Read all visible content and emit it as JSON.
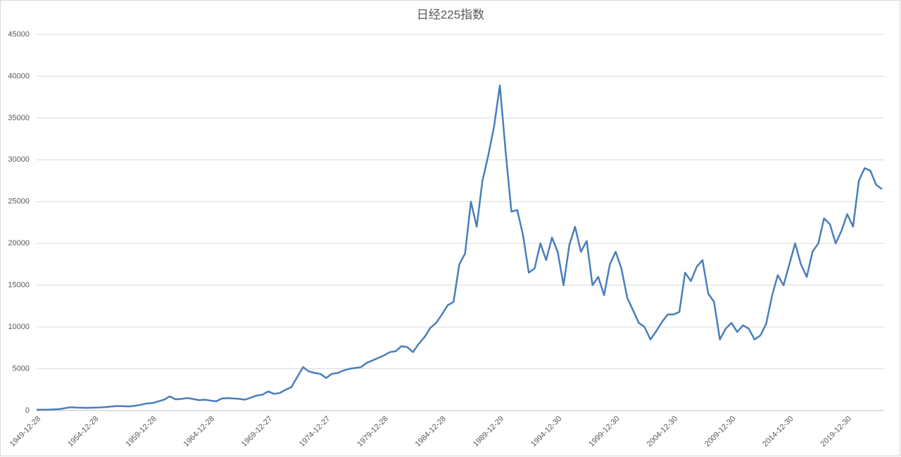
{
  "chart_data": {
    "type": "line",
    "title": "日经225指数",
    "categories": [
      "1949-12-28",
      null,
      null,
      null,
      null,
      null,
      null,
      null,
      null,
      null,
      "1954-12-28",
      null,
      null,
      null,
      null,
      null,
      null,
      null,
      null,
      null,
      "1959-12-28",
      null,
      null,
      null,
      null,
      null,
      null,
      null,
      null,
      null,
      "1964-12-28",
      null,
      null,
      null,
      null,
      null,
      null,
      null,
      null,
      null,
      "1969-12-27",
      null,
      null,
      null,
      null,
      null,
      null,
      null,
      null,
      null,
      "1974-12-27",
      null,
      null,
      null,
      null,
      null,
      null,
      null,
      null,
      null,
      "1979-12-28",
      null,
      null,
      null,
      null,
      null,
      null,
      null,
      null,
      null,
      "1984-12-28",
      null,
      null,
      null,
      null,
      null,
      null,
      null,
      null,
      null,
      "1989-12-29",
      null,
      null,
      null,
      null,
      null,
      null,
      null,
      null,
      null,
      "1994-12-30",
      null,
      null,
      null,
      null,
      null,
      null,
      null,
      null,
      null,
      "1999-12-30",
      null,
      null,
      null,
      null,
      null,
      null,
      null,
      null,
      null,
      "2004-12-30",
      null,
      null,
      null,
      null,
      null,
      null,
      null,
      null,
      null,
      "2009-12-30",
      null,
      null,
      null,
      null,
      null,
      null,
      null,
      null,
      null,
      "2014-12-30",
      null,
      null,
      null,
      null,
      null,
      null,
      null,
      null,
      null,
      "2019-12-30",
      null,
      null,
      null,
      null,
      null,
      null
    ],
    "series": [
      {
        "name": "日经225指数",
        "color": "#4a7ebb",
        "values": [
          100,
          100,
          120,
          150,
          180,
          300,
          400,
          350,
          340,
          330,
          360,
          380,
          420,
          500,
          550,
          520,
          500,
          580,
          700,
          850,
          900,
          1100,
          1300,
          1700,
          1350,
          1400,
          1500,
          1400,
          1250,
          1300,
          1200,
          1100,
          1450,
          1500,
          1450,
          1400,
          1300,
          1550,
          1800,
          1900,
          2300,
          2000,
          2100,
          2500,
          2800,
          4000,
          5200,
          4700,
          4500,
          4400,
          3900,
          4400,
          4500,
          4800,
          5000,
          5100,
          5200,
          5700,
          6000,
          6300,
          6600,
          7000,
          7100,
          7700,
          7600,
          7000,
          8000,
          8800,
          9900,
          10500,
          11500,
          12600,
          13000,
          17500,
          18800,
          25000,
          22000,
          27500,
          30500,
          34000,
          38900,
          31000,
          23800,
          24000,
          21000,
          16500,
          17000,
          20000,
          18000,
          20700,
          19000,
          15000,
          19800,
          22000,
          19000,
          20300,
          15000,
          16000,
          13800,
          17500,
          19000,
          17000,
          13500,
          12000,
          10500,
          10000,
          8500,
          9500,
          10600,
          11500,
          11500,
          11800,
          16500,
          15500,
          17200,
          18000,
          14000,
          13000,
          8500,
          9800,
          10500,
          9400,
          10200,
          9800,
          8500,
          9000,
          10400,
          13700,
          16200,
          15000,
          17500,
          20000,
          17500,
          16000,
          19000,
          20000,
          23000,
          22300,
          20000,
          21500,
          23500,
          22000,
          27500,
          29000,
          28700,
          27000,
          26500
        ]
      }
    ],
    "ylim": [
      0,
      45000
    ],
    "yticks": [
      0,
      5000,
      10000,
      15000,
      20000,
      25000,
      30000,
      35000,
      40000,
      45000
    ],
    "grid": true
  }
}
